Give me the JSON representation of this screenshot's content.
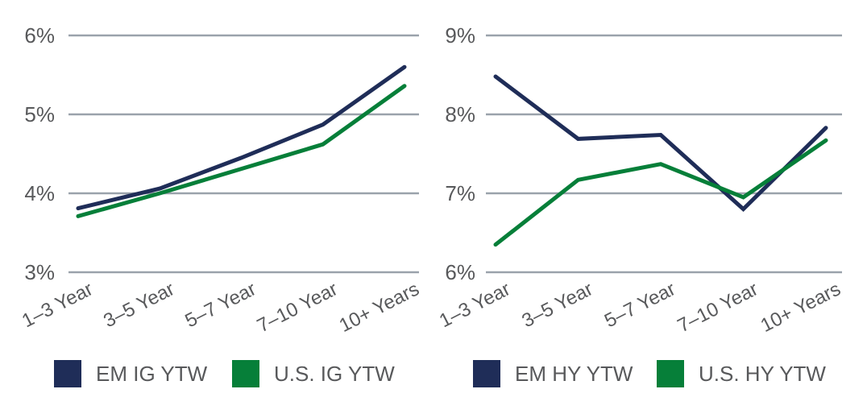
{
  "colors": {
    "navy": "#1f2d58",
    "green": "#067f39",
    "gridline": "#9aa2ab",
    "label_text": "#58595b",
    "background": "#ffffff"
  },
  "chart_data": [
    {
      "type": "line",
      "title": "",
      "xlabel": "",
      "ylabel": "",
      "categories": [
        "1–3 Year",
        "3–5 Year",
        "5–7 Year",
        "7–10 Year",
        "10+ Years"
      ],
      "y_ticks": [
        "6%",
        "5%",
        "4%",
        "3%"
      ],
      "ylim": [
        3,
        6
      ],
      "grid": "horizontal",
      "legend_position": "bottom",
      "series": [
        {
          "name": "EM IG YTW",
          "color": "#1f2d58",
          "values": [
            3.81,
            4.06,
            4.45,
            4.87,
            5.6
          ]
        },
        {
          "name": "U.S. IG YTW",
          "color": "#067f39",
          "values": [
            3.71,
            4.0,
            4.31,
            4.62,
            5.36
          ]
        }
      ]
    },
    {
      "type": "line",
      "title": "",
      "xlabel": "",
      "ylabel": "",
      "categories": [
        "1–3 Year",
        "3–5 Year",
        "5–7 Year",
        "7–10 Year",
        "10+ Years"
      ],
      "y_ticks": [
        "9%",
        "8%",
        "7%",
        "6%"
      ],
      "ylim": [
        6,
        9
      ],
      "grid": "horizontal",
      "legend_position": "bottom",
      "series": [
        {
          "name": "EM HY YTW",
          "color": "#1f2d58",
          "values": [
            8.48,
            7.69,
            7.74,
            6.8,
            7.83
          ]
        },
        {
          "name": "U.S. HY YTW",
          "color": "#067f39",
          "values": [
            6.35,
            7.17,
            7.37,
            6.95,
            7.67
          ]
        }
      ]
    }
  ]
}
